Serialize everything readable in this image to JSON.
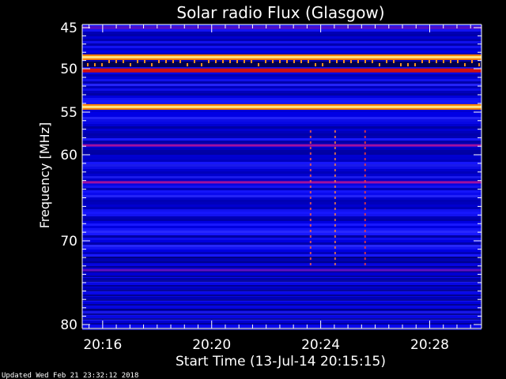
{
  "chart_data": {
    "type": "heatmap",
    "title": "Solar radio Flux (Glasgow)",
    "xlabel": "Start Time (13-Jul-14 20:15:15)",
    "ylabel": "Frequency [MHz]",
    "footer": "Updated Wed Feb 21 23:32:12 2018",
    "x_ticks": [
      "20:16",
      "20:20",
      "20:24",
      "20:28"
    ],
    "x_tick_minutes": [
      16,
      20,
      24,
      28
    ],
    "x_range_minutes": [
      15.25,
      29.9
    ],
    "y_ticks": [
      "45",
      "50",
      "55",
      "60",
      "70",
      "80"
    ],
    "y_tick_values": [
      45,
      50,
      55,
      60,
      70,
      80
    ],
    "y_range_mhz": [
      45,
      80
    ],
    "bright_bands_mhz": [
      {
        "freq": 48.6,
        "level": "max"
      },
      {
        "freq": 54.4,
        "level": "max"
      },
      {
        "freq": 50.2,
        "level": "high"
      },
      {
        "freq": 58.9,
        "level": "mid"
      },
      {
        "freq": 63.2,
        "level": "mid"
      },
      {
        "freq": 73.5,
        "level": "low"
      }
    ],
    "colors": {
      "background_low": "#0000c8",
      "background_mid": "#2222ff",
      "band_high": "#d01010",
      "band_max": "#ffe080",
      "axis": "#ffffff"
    }
  }
}
